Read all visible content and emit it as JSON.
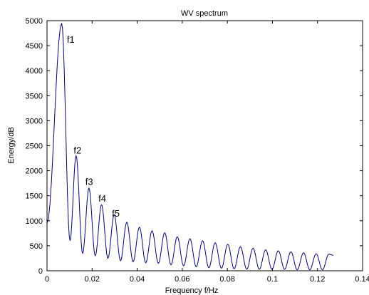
{
  "chart_data": {
    "type": "line",
    "title": "WV spectrum",
    "xlabel": "Frequency f/Hz",
    "ylabel": "Energy/dB",
    "xlim": [
      0,
      0.14
    ],
    "ylim": [
      0,
      5000
    ],
    "x_ticks": [
      "0",
      "0.02",
      "0.04",
      "0.06",
      "0.08",
      "0.1",
      "0.12",
      "0.14"
    ],
    "y_ticks": [
      "0",
      "500",
      "1000",
      "1500",
      "2000",
      "2500",
      "3000",
      "3500",
      "4000",
      "4500",
      "5000"
    ],
    "grid": false,
    "legend": "none",
    "line_color": "#00008b",
    "series": [
      {
        "x": [
          0,
          0.0065,
          0.0102,
          0.0129,
          0.0158,
          0.0186,
          0.0214,
          0.0242,
          0.027,
          0.0298,
          0.0326,
          0.0354,
          0.0382,
          0.041,
          0.0438,
          0.0466,
          0.0494,
          0.0522,
          0.055,
          0.0578,
          0.0606,
          0.0634,
          0.0662,
          0.069,
          0.0718,
          0.0746,
          0.0774,
          0.0802,
          0.083,
          0.0858,
          0.0886,
          0.0914,
          0.0942,
          0.097,
          0.0998,
          0.1026,
          0.1054,
          0.1082,
          0.111,
          0.1138,
          0.1166,
          0.1194,
          0.1222,
          0.125,
          0.1271
        ],
        "y": [
          950,
          4950,
          600,
          2300,
          350,
          1650,
          300,
          1320,
          250,
          1120,
          200,
          970,
          180,
          870,
          160,
          800,
          150,
          760,
          120,
          680,
          100,
          640,
          80,
          600,
          60,
          560,
          50,
          530,
          40,
          480,
          30,
          450,
          30,
          420,
          30,
          400,
          30,
          380,
          20,
          360,
          20,
          340,
          20,
          330,
          310
        ]
      }
    ],
    "annotations": [
      {
        "text": "f1",
        "x": 0.0088,
        "y": 4560
      },
      {
        "text": "f2",
        "x": 0.0118,
        "y": 2340
      },
      {
        "text": "f3",
        "x": 0.017,
        "y": 1720
      },
      {
        "text": "f4",
        "x": 0.0228,
        "y": 1380
      },
      {
        "text": "f5",
        "x": 0.0288,
        "y": 1080
      }
    ]
  }
}
